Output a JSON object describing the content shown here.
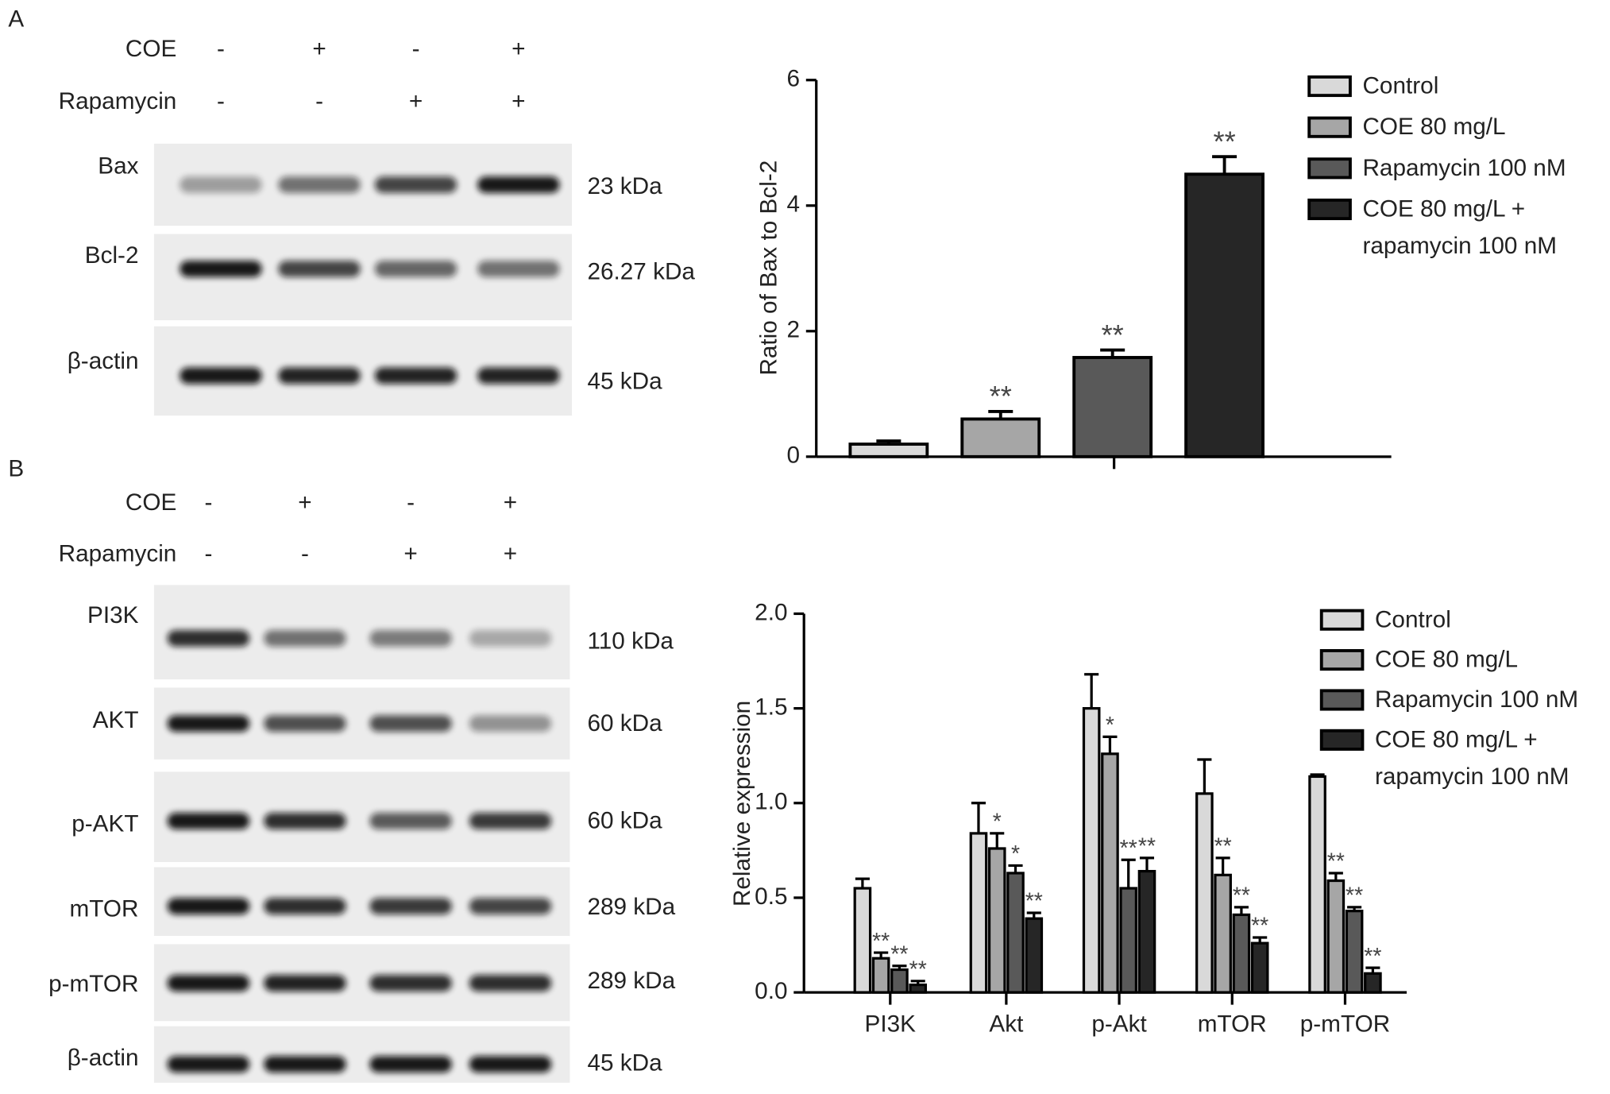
{
  "panels": [
    {
      "label": "A",
      "treatments": [
        {
          "name": "COE",
          "signs": [
            "-",
            "+",
            "-",
            "+"
          ]
        },
        {
          "name": "Rapamycin",
          "signs": [
            "-",
            "-",
            "+",
            "+"
          ]
        }
      ],
      "bands": [
        {
          "name": "Bax",
          "size": "23 kDa"
        },
        {
          "name": "Bcl-2",
          "size": "26.27 kDa"
        },
        {
          "name": "β-actin",
          "size": "45 kDa"
        }
      ]
    },
    {
      "label": "B",
      "treatments": [
        {
          "name": "COE",
          "signs": [
            "-",
            "+",
            "-",
            "+"
          ]
        },
        {
          "name": "Rapamycin",
          "signs": [
            "-",
            "-",
            "+",
            "+"
          ]
        }
      ],
      "bands": [
        {
          "name": "PI3K",
          "size": "110 kDa"
        },
        {
          "name": "AKT",
          "size": "60 kDa"
        },
        {
          "name": "p-AKT",
          "size": "60 kDa"
        },
        {
          "name": "mTOR",
          "size": "289 kDa"
        },
        {
          "name": "p-mTOR",
          "size": "289 kDa"
        },
        {
          "name": "β-actin",
          "size": "45 kDa"
        }
      ]
    }
  ],
  "chart_data": [
    {
      "type": "bar",
      "ylabel": "Ratio of Bax to Bcl-2",
      "ylim": [
        0,
        6
      ],
      "yticks": [
        0,
        2,
        4,
        6
      ],
      "series": [
        {
          "name": "Control",
          "color": "#d9d9d9",
          "values": [
            0.2
          ],
          "errors": [
            0.05
          ],
          "marks": [
            null
          ]
        },
        {
          "name": "COE 80 mg/L",
          "color": "#a6a6a6",
          "values": [
            0.6
          ],
          "errors": [
            0.12
          ],
          "marks": [
            "**"
          ]
        },
        {
          "name": "Rapamycin 100 nM",
          "color": "#595959",
          "values": [
            1.58
          ],
          "errors": [
            0.12
          ],
          "marks": [
            "**"
          ]
        },
        {
          "name": "COE 80 mg/L +\nrapamycin 100 nM",
          "color": "#262626",
          "values": [
            4.5
          ],
          "errors": [
            0.28
          ],
          "marks": [
            "**"
          ]
        }
      ]
    },
    {
      "type": "bar",
      "ylabel": "Relative expression",
      "ylim": [
        0,
        2
      ],
      "yticks": [
        {
          "value": 0,
          "label": "0.0"
        },
        {
          "value": 0.5,
          "label": "0.5"
        },
        {
          "value": 1,
          "label": "1.0"
        },
        {
          "value": 1.5,
          "label": "1.5"
        },
        {
          "value": 2,
          "label": "2.0"
        }
      ],
      "categories": [
        "PI3K",
        "Akt",
        "p-Akt",
        "mTOR",
        "p-mTOR"
      ],
      "series": [
        {
          "name": "Control",
          "color": "#d9d9d9",
          "values": [
            0.55,
            0.84,
            1.5,
            1.05,
            1.14
          ],
          "errors": [
            0.05,
            0.16,
            0.18,
            0.18,
            0.01
          ],
          "marks": [
            null,
            null,
            null,
            null,
            null
          ]
        },
        {
          "name": "COE 80 mg/L",
          "color": "#a6a6a6",
          "values": [
            0.18,
            0.76,
            1.26,
            0.62,
            0.59
          ],
          "errors": [
            0.03,
            0.08,
            0.09,
            0.09,
            0.04
          ],
          "marks": [
            "**",
            "*",
            "*",
            "**",
            "**"
          ]
        },
        {
          "name": "Rapamycin 100 nM",
          "color": "#595959",
          "values": [
            0.12,
            0.63,
            0.55,
            0.41,
            0.43
          ],
          "errors": [
            0.02,
            0.04,
            0.15,
            0.04,
            0.02
          ],
          "marks": [
            "**",
            "*",
            "**",
            "**",
            "**"
          ]
        },
        {
          "name": "COE 80 mg/L +\nrapamycin 100 nM",
          "color": "#262626",
          "values": [
            0.04,
            0.39,
            0.64,
            0.26,
            0.1
          ],
          "errors": [
            0.02,
            0.03,
            0.07,
            0.03,
            0.03
          ],
          "marks": [
            "**",
            "**",
            "**",
            "**",
            "**"
          ]
        }
      ]
    }
  ]
}
